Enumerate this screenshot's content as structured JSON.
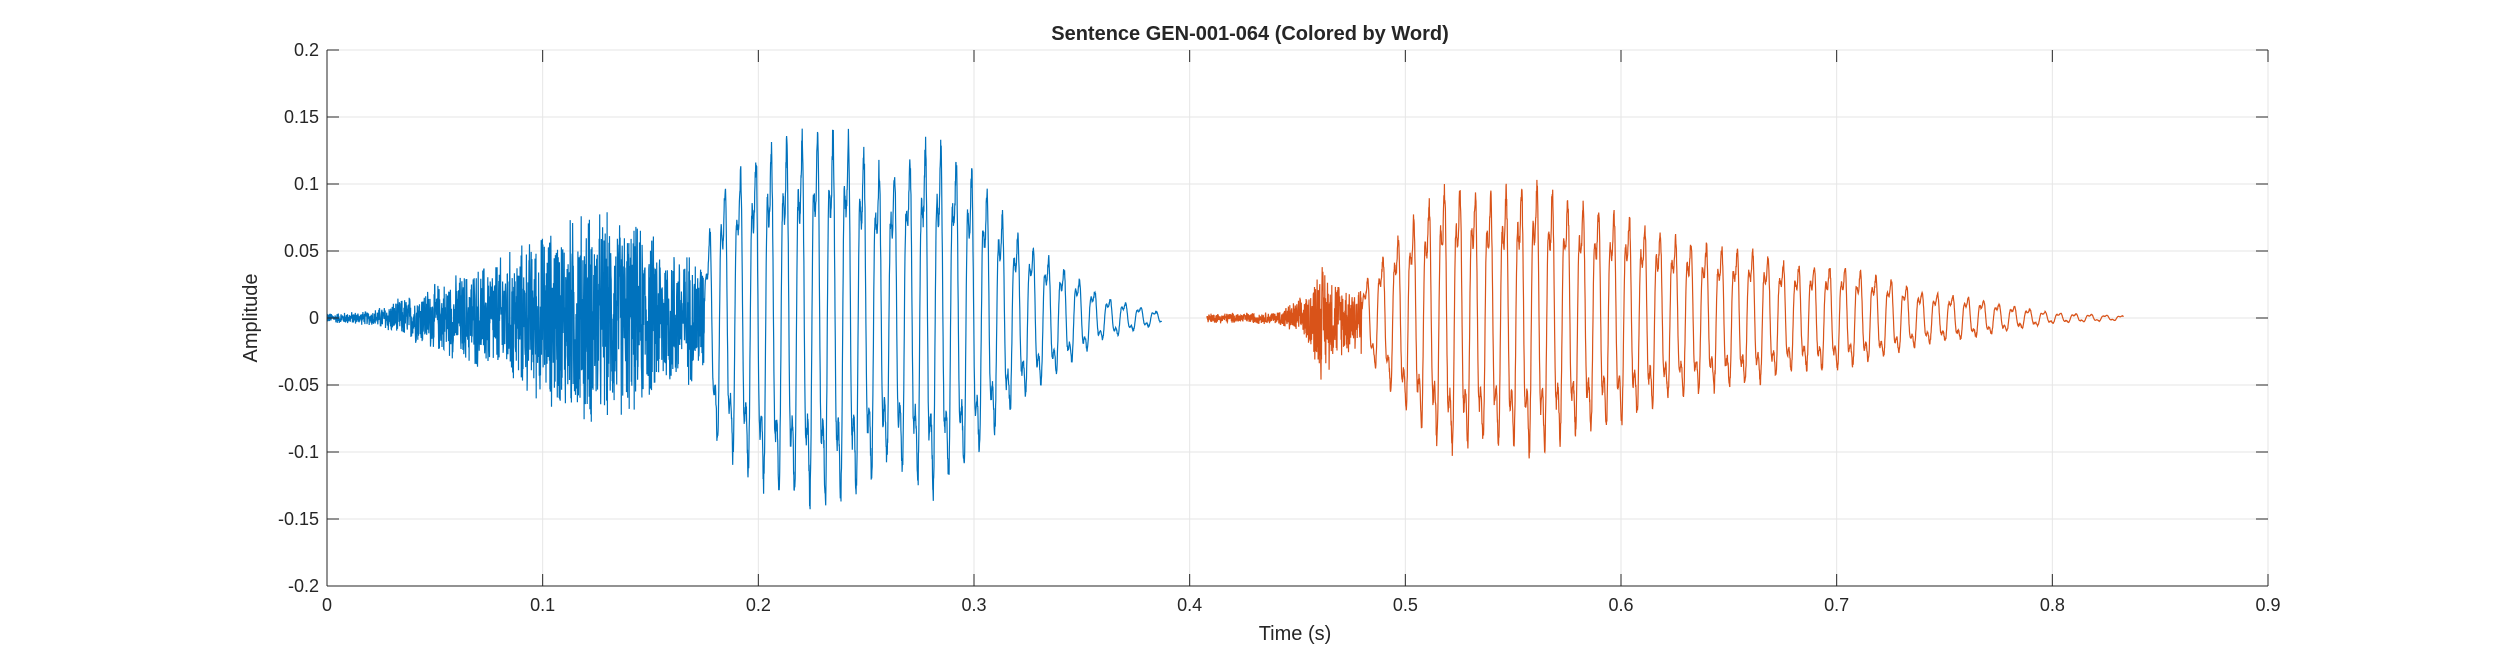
{
  "chart_data": {
    "type": "line",
    "title": "Sentence GEN-001-064 (Colored by Word)",
    "xlabel": "Time (s)",
    "ylabel": "Amplitude",
    "xlim": [
      0,
      0.9
    ],
    "ylim": [
      -0.2,
      0.2
    ],
    "grid": true,
    "x_ticks": [
      0,
      0.1,
      0.2,
      0.3,
      0.4,
      0.5,
      0.6,
      0.7,
      0.8,
      0.9
    ],
    "x_tick_labels": [
      "0",
      "0.1",
      "0.2",
      "0.3",
      "0.4",
      "0.5",
      "0.6",
      "0.7",
      "0.8",
      "0.9"
    ],
    "y_ticks": [
      -0.2,
      -0.15,
      -0.1,
      -0.05,
      0,
      0.05,
      0.1,
      0.15,
      0.2
    ],
    "y_tick_labels": [
      "-0.2",
      "-0.15",
      "-0.1",
      "-0.05",
      "0",
      "0.05",
      "0.1",
      "0.15",
      "0.2"
    ],
    "series": [
      {
        "color": "#0072BD",
        "t_start": 0.0,
        "t_end": 0.387,
        "envelope": [
          [
            0.0,
            0.004
          ],
          [
            0.02,
            0.006
          ],
          [
            0.04,
            0.02
          ],
          [
            0.06,
            0.035
          ],
          [
            0.08,
            0.05
          ],
          [
            0.1,
            0.07
          ],
          [
            0.12,
            0.09
          ],
          [
            0.14,
            0.08
          ],
          [
            0.16,
            0.06
          ],
          [
            0.175,
            0.05
          ],
          [
            0.18,
            0.12
          ],
          [
            0.2,
            0.16
          ],
          [
            0.22,
            0.175
          ],
          [
            0.24,
            0.18
          ],
          [
            0.26,
            0.14
          ],
          [
            0.28,
            0.17
          ],
          [
            0.3,
            0.14
          ],
          [
            0.32,
            0.08
          ],
          [
            0.34,
            0.05
          ],
          [
            0.36,
            0.02
          ],
          [
            0.387,
            0.005
          ]
        ]
      },
      {
        "color": "#D95319",
        "t_start": 0.408,
        "t_end": 0.833,
        "envelope": [
          [
            0.408,
            0.004
          ],
          [
            0.44,
            0.005
          ],
          [
            0.455,
            0.02
          ],
          [
            0.46,
            0.05
          ],
          [
            0.47,
            0.03
          ],
          [
            0.48,
            0.03
          ],
          [
            0.5,
            0.09
          ],
          [
            0.52,
            0.13
          ],
          [
            0.54,
            0.12
          ],
          [
            0.56,
            0.13
          ],
          [
            0.58,
            0.11
          ],
          [
            0.6,
            0.1
          ],
          [
            0.62,
            0.08
          ],
          [
            0.64,
            0.07
          ],
          [
            0.66,
            0.065
          ],
          [
            0.68,
            0.05
          ],
          [
            0.7,
            0.05
          ],
          [
            0.72,
            0.04
          ],
          [
            0.74,
            0.025
          ],
          [
            0.76,
            0.02
          ],
          [
            0.78,
            0.012
          ],
          [
            0.8,
            0.005
          ],
          [
            0.833,
            0.002
          ]
        ]
      }
    ]
  }
}
